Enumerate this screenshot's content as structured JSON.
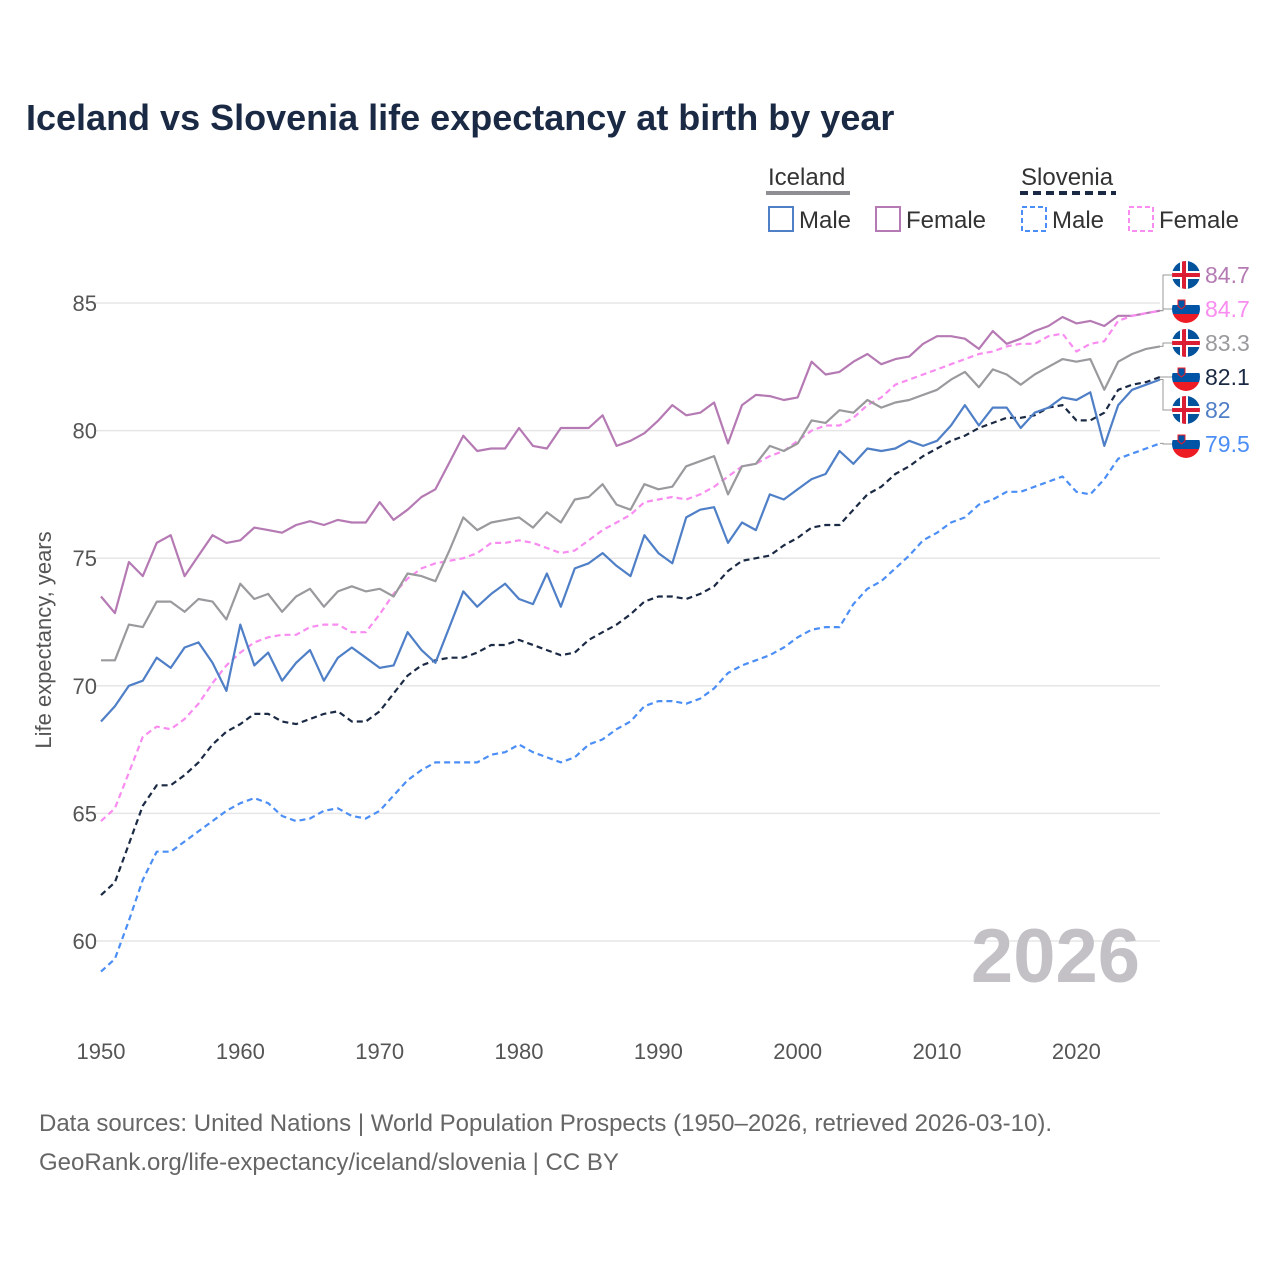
{
  "chart_data": {
    "type": "line",
    "title": "Iceland vs Slovenia life expectancy at birth by year",
    "xlabel": "",
    "ylabel": "Life expectancy, years",
    "xlim": [
      1950,
      2026
    ],
    "ylim": [
      57.5,
      86.5
    ],
    "xticks": [
      1950,
      1960,
      1970,
      1980,
      1990,
      2000,
      2010,
      2020
    ],
    "yticks": [
      60,
      65,
      70,
      75,
      80,
      85
    ],
    "grid": true,
    "year_watermark": "2026",
    "legend": {
      "placement": "top-right",
      "groups": [
        {
          "name": "Iceland",
          "style": "solid",
          "color": "#8e8e93",
          "items": [
            "Male",
            "Female"
          ]
        },
        {
          "name": "Slovenia",
          "style": "dashed",
          "color": "#1b2a44",
          "items": [
            "Male",
            "Female"
          ]
        }
      ]
    },
    "series": [
      {
        "name": "Iceland Female",
        "country": "Iceland",
        "style": "solid",
        "color": "#b57ab3",
        "end_label": "84.7",
        "values": [
          73.5,
          72.85,
          74.85,
          74.3,
          75.6,
          75.9,
          74.3,
          75.1,
          75.9,
          75.6,
          75.7,
          76.2,
          76.1,
          76.0,
          76.3,
          76.45,
          76.3,
          76.5,
          76.4,
          76.4,
          77.2,
          76.5,
          76.9,
          77.4,
          77.7,
          78.75,
          79.8,
          79.2,
          79.3,
          79.3,
          80.1,
          79.4,
          79.3,
          80.1,
          80.1,
          80.1,
          80.6,
          79.4,
          79.6,
          79.9,
          80.4,
          81.0,
          80.6,
          80.7,
          81.1,
          79.5,
          81.0,
          81.4,
          81.35,
          81.2,
          81.3,
          82.7,
          82.2,
          82.3,
          82.7,
          83.0,
          82.6,
          82.8,
          82.9,
          83.4,
          83.7,
          83.7,
          83.6,
          83.2,
          83.9,
          83.4,
          83.6,
          83.9,
          84.1,
          84.45,
          84.2,
          84.3,
          84.1,
          84.5,
          84.5,
          84.6,
          84.7
        ]
      },
      {
        "name": "Slovenia Female",
        "country": "Slovenia",
        "style": "dashed",
        "color": "#f98cf0",
        "end_label": "84.7",
        "values": [
          64.7,
          65.2,
          66.6,
          68.0,
          68.4,
          68.3,
          68.7,
          69.3,
          70.1,
          70.8,
          71.3,
          71.7,
          71.9,
          72.0,
          72.0,
          72.3,
          72.4,
          72.4,
          72.1,
          72.1,
          72.8,
          73.6,
          74.2,
          74.6,
          74.8,
          74.9,
          75.0,
          75.2,
          75.6,
          75.6,
          75.7,
          75.6,
          75.4,
          75.2,
          75.3,
          75.7,
          76.1,
          76.4,
          76.7,
          77.2,
          77.3,
          77.4,
          77.3,
          77.5,
          77.8,
          78.2,
          78.6,
          78.7,
          79.0,
          79.2,
          79.6,
          80.0,
          80.2,
          80.2,
          80.5,
          81.0,
          81.3,
          81.8,
          82.0,
          82.2,
          82.4,
          82.6,
          82.8,
          83.0,
          83.1,
          83.3,
          83.4,
          83.4,
          83.7,
          83.8,
          83.1,
          83.4,
          83.5,
          84.3,
          84.5,
          84.6,
          84.7
        ]
      },
      {
        "name": "Iceland Total",
        "country": "Iceland",
        "style": "solid",
        "color": "#9a9a9e",
        "end_label": "83.3",
        "values": [
          71.0,
          71.0,
          72.4,
          72.3,
          73.3,
          73.3,
          72.9,
          73.4,
          73.3,
          72.6,
          74.0,
          73.4,
          73.6,
          72.9,
          73.5,
          73.8,
          73.1,
          73.7,
          73.9,
          73.7,
          73.8,
          73.5,
          74.4,
          74.3,
          74.1,
          75.3,
          76.6,
          76.1,
          76.4,
          76.5,
          76.6,
          76.2,
          76.8,
          76.4,
          77.3,
          77.4,
          77.9,
          77.1,
          76.9,
          77.9,
          77.7,
          77.8,
          78.6,
          78.8,
          79.0,
          77.5,
          78.6,
          78.7,
          79.4,
          79.2,
          79.5,
          80.4,
          80.3,
          80.8,
          80.7,
          81.2,
          80.9,
          81.1,
          81.2,
          81.4,
          81.6,
          82.0,
          82.3,
          81.7,
          82.4,
          82.2,
          81.8,
          82.2,
          82.5,
          82.8,
          82.7,
          82.8,
          81.6,
          82.7,
          83.0,
          83.2,
          83.3
        ]
      },
      {
        "name": "Slovenia Total",
        "country": "Slovenia",
        "style": "dashed",
        "color": "#1b2a44",
        "end_label": "82.1",
        "values": [
          61.8,
          62.3,
          63.8,
          65.3,
          66.1,
          66.1,
          66.5,
          67.0,
          67.7,
          68.2,
          68.5,
          68.9,
          68.9,
          68.6,
          68.5,
          68.7,
          68.9,
          69.0,
          68.6,
          68.6,
          69.0,
          69.7,
          70.4,
          70.8,
          71.0,
          71.1,
          71.1,
          71.3,
          71.6,
          71.6,
          71.8,
          71.6,
          71.4,
          71.2,
          71.3,
          71.8,
          72.1,
          72.4,
          72.8,
          73.3,
          73.5,
          73.5,
          73.4,
          73.6,
          73.9,
          74.5,
          74.9,
          75.0,
          75.1,
          75.5,
          75.8,
          76.2,
          76.3,
          76.3,
          76.9,
          77.5,
          77.8,
          78.3,
          78.6,
          79.0,
          79.3,
          79.6,
          79.8,
          80.1,
          80.3,
          80.5,
          80.5,
          80.6,
          80.9,
          81.0,
          80.4,
          80.4,
          80.7,
          81.6,
          81.8,
          81.9,
          82.1
        ]
      },
      {
        "name": "Iceland Male",
        "country": "Iceland",
        "style": "solid",
        "color": "#4f7fc6",
        "end_label": "82",
        "values": [
          68.6,
          69.2,
          70.0,
          70.2,
          71.1,
          70.7,
          71.5,
          71.7,
          70.9,
          69.8,
          72.4,
          70.8,
          71.3,
          70.2,
          70.9,
          71.4,
          70.2,
          71.1,
          71.5,
          71.1,
          70.7,
          70.8,
          72.1,
          71.4,
          70.9,
          72.3,
          73.7,
          73.1,
          73.6,
          74.0,
          73.4,
          73.2,
          74.4,
          73.1,
          74.6,
          74.8,
          75.2,
          74.7,
          74.3,
          75.9,
          75.2,
          74.8,
          76.6,
          76.9,
          77.0,
          75.6,
          76.4,
          76.1,
          77.5,
          77.3,
          77.7,
          78.1,
          78.3,
          79.2,
          78.7,
          79.3,
          79.2,
          79.3,
          79.6,
          79.4,
          79.6,
          80.2,
          81.0,
          80.2,
          80.9,
          80.9,
          80.1,
          80.7,
          80.9,
          81.3,
          81.2,
          81.5,
          79.4,
          81.0,
          81.6,
          81.8,
          82.0
        ]
      },
      {
        "name": "Slovenia Male",
        "country": "Slovenia",
        "style": "dashed",
        "color": "#4b8ef5",
        "end_label": "79.5",
        "values": [
          58.8,
          59.3,
          60.8,
          62.4,
          63.5,
          63.5,
          63.9,
          64.3,
          64.7,
          65.1,
          65.4,
          65.6,
          65.4,
          64.9,
          64.7,
          64.8,
          65.1,
          65.2,
          64.9,
          64.8,
          65.1,
          65.7,
          66.3,
          66.7,
          67.0,
          67.0,
          67.0,
          67.0,
          67.3,
          67.4,
          67.7,
          67.4,
          67.2,
          67.0,
          67.2,
          67.7,
          67.9,
          68.3,
          68.6,
          69.2,
          69.4,
          69.4,
          69.3,
          69.5,
          69.9,
          70.5,
          70.8,
          71.0,
          71.2,
          71.5,
          71.9,
          72.2,
          72.3,
          72.3,
          73.2,
          73.8,
          74.1,
          74.6,
          75.1,
          75.7,
          76.0,
          76.4,
          76.6,
          77.1,
          77.3,
          77.6,
          77.6,
          77.8,
          78.0,
          78.2,
          77.6,
          77.5,
          78.1,
          78.9,
          79.1,
          79.3,
          79.5
        ]
      }
    ]
  },
  "footer": {
    "line1": "Data sources: United Nations | World Population Prospects (1950–2026, retrieved 2026-03-10).",
    "line2": "GeoRank.org/life-expectancy/iceland/slovenia | CC BY"
  }
}
